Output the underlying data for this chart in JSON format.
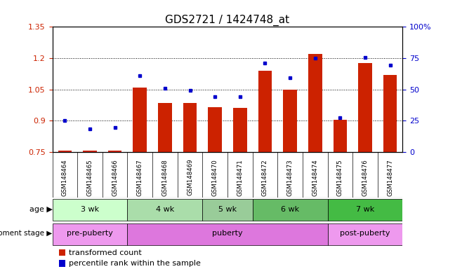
{
  "title": "GDS2721 / 1424748_at",
  "samples": [
    "GSM148464",
    "GSM148465",
    "GSM148466",
    "GSM148467",
    "GSM148468",
    "GSM148469",
    "GSM148470",
    "GSM148471",
    "GSM148472",
    "GSM148473",
    "GSM148474",
    "GSM148475",
    "GSM148476",
    "GSM148477"
  ],
  "bar_values": [
    0.755,
    0.755,
    0.757,
    1.06,
    0.985,
    0.985,
    0.965,
    0.96,
    1.14,
    1.05,
    1.22,
    0.905,
    1.175,
    1.12
  ],
  "dot_values": [
    0.9,
    0.862,
    0.868,
    1.115,
    1.055,
    1.045,
    1.015,
    1.015,
    1.175,
    1.105,
    1.2,
    0.915,
    1.205,
    1.165
  ],
  "bar_color": "#cc2200",
  "dot_color": "#0000cc",
  "ylim_left": [
    0.75,
    1.35
  ],
  "ylim_right": [
    0,
    100
  ],
  "yticks_left": [
    0.75,
    0.9,
    1.05,
    1.2,
    1.35
  ],
  "yticks_right": [
    0,
    25,
    50,
    75,
    100
  ],
  "ytick_labels_left": [
    "0.75",
    "0.9",
    "1.05",
    "1.2",
    "1.35"
  ],
  "ytick_labels_right": [
    "0",
    "25",
    "50",
    "75",
    "100%"
  ],
  "age_groups": [
    {
      "label": "3 wk",
      "start": 0,
      "end": 3,
      "color": "#ccffcc"
    },
    {
      "label": "4 wk",
      "start": 3,
      "end": 6,
      "color": "#aaddaa"
    },
    {
      "label": "5 wk",
      "start": 6,
      "end": 8,
      "color": "#99cc99"
    },
    {
      "label": "6 wk",
      "start": 8,
      "end": 11,
      "color": "#66bb66"
    },
    {
      "label": "7 wk",
      "start": 11,
      "end": 14,
      "color": "#44bb44"
    }
  ],
  "dev_groups": [
    {
      "label": "pre-puberty",
      "start": 0,
      "end": 3,
      "color": "#ee99ee"
    },
    {
      "label": "puberty",
      "start": 3,
      "end": 11,
      "color": "#dd77dd"
    },
    {
      "label": "post-puberty",
      "start": 11,
      "end": 14,
      "color": "#ee99ee"
    }
  ],
  "legend_bar_label": "transformed count",
  "legend_dot_label": "percentile rank within the sample",
  "age_label": "age",
  "dev_label": "development stage",
  "bg_color": "#ffffff",
  "plot_bg": "#ffffff",
  "xtick_bg": "#cccccc",
  "title_fontsize": 11,
  "tick_fontsize": 8,
  "bar_width": 0.55,
  "n_samples": 14
}
